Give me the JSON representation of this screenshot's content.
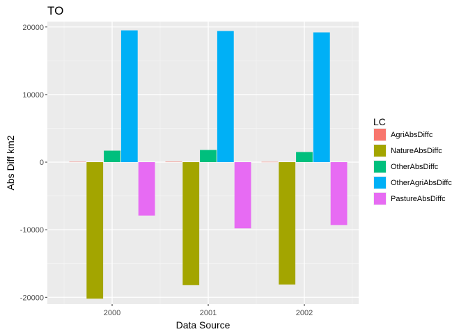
{
  "chart_data": {
    "type": "bar",
    "title": "TO",
    "xlabel": "Data Source",
    "ylabel": "Abs Diff km2",
    "categories": [
      "2000",
      "2001",
      "2002"
    ],
    "ylim": [
      -21000,
      20800
    ],
    "yticks": [
      -20000,
      -10000,
      0,
      10000,
      20000
    ],
    "ytick_labels": [
      "-20000",
      "-10000",
      "0",
      "10000",
      "20000"
    ],
    "grid": true,
    "legend": {
      "title": "LC",
      "position": "right"
    },
    "series": [
      {
        "name": "AgriAbsDiffc",
        "color": "#F8766D",
        "values": [
          50,
          60,
          40
        ]
      },
      {
        "name": "NatureAbsDiffc",
        "color": "#A3A500",
        "values": [
          -20200,
          -18200,
          -18100
        ]
      },
      {
        "name": "OtherAbsDiffc",
        "color": "#00BF7D",
        "values": [
          1700,
          1800,
          1500
        ]
      },
      {
        "name": "OtherAgriAbsDiffc",
        "color": "#00B0F6",
        "values": [
          19500,
          19400,
          19200
        ]
      },
      {
        "name": "PastureAbsDiffc",
        "color": "#E76BF3",
        "values": [
          -7900,
          -9800,
          -9300
        ]
      }
    ]
  }
}
